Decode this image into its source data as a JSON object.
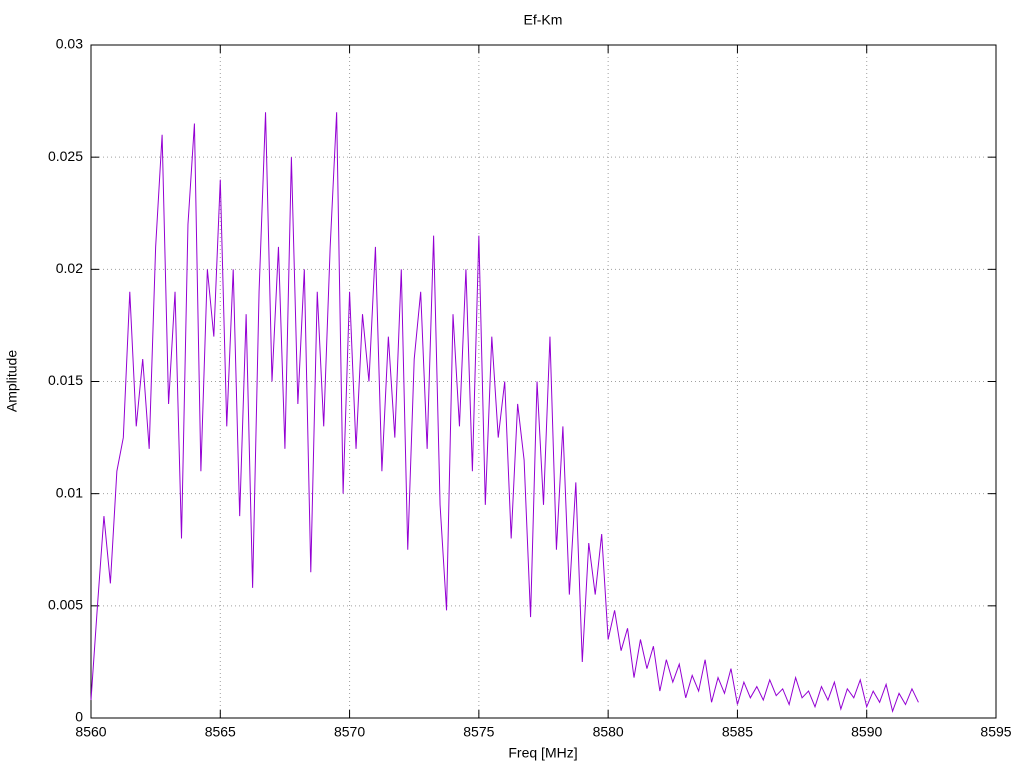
{
  "chart_data": {
    "type": "line",
    "title": "Ef-Km",
    "x_label": "Freq [MHz]",
    "y_label": "Amplitude",
    "color": "#9400d3",
    "grid": true,
    "xlim": [
      8560,
      8595
    ],
    "xticks": [
      8560,
      8565,
      8570,
      8575,
      8580,
      8585,
      8590,
      8595
    ],
    "ylim": [
      0,
      0.03
    ],
    "yticks": [
      0,
      0.005,
      0.01,
      0.015,
      0.02,
      0.025,
      0.03
    ],
    "x": [
      8560,
      8560.25,
      8560.5,
      8560.75,
      8561,
      8561.25,
      8561.5,
      8561.75,
      8562,
      8562.25,
      8562.5,
      8562.75,
      8563,
      8563.25,
      8563.5,
      8563.75,
      8564,
      8564.25,
      8564.5,
      8564.75,
      8565,
      8565.25,
      8565.5,
      8565.75,
      8566,
      8566.25,
      8566.5,
      8566.75,
      8567,
      8567.25,
      8567.5,
      8567.75,
      8568,
      8568.25,
      8568.5,
      8568.75,
      8569,
      8569.25,
      8569.5,
      8569.75,
      8570,
      8570.25,
      8570.5,
      8570.75,
      8571,
      8571.25,
      8571.5,
      8571.75,
      8572,
      8572.25,
      8572.5,
      8572.75,
      8573,
      8573.25,
      8573.5,
      8573.75,
      8574,
      8574.25,
      8574.5,
      8574.75,
      8575,
      8575.25,
      8575.5,
      8575.75,
      8576,
      8576.25,
      8576.5,
      8576.75,
      8577,
      8577.25,
      8577.5,
      8577.75,
      8578,
      8578.25,
      8578.5,
      8578.75,
      8579,
      8579.25,
      8579.5,
      8579.75,
      8580,
      8580.25,
      8580.5,
      8580.75,
      8581,
      8581.25,
      8581.5,
      8581.75,
      8582,
      8582.25,
      8582.5,
      8582.75,
      8583,
      8583.25,
      8583.5,
      8583.75,
      8584,
      8584.25,
      8584.5,
      8584.75,
      8585,
      8585.25,
      8585.5,
      8585.75,
      8586,
      8586.25,
      8586.5,
      8586.75,
      8587,
      8587.25,
      8587.5,
      8587.75,
      8588,
      8588.25,
      8588.5,
      8588.75,
      8589,
      8589.25,
      8589.5,
      8589.75,
      8590,
      8590.25,
      8590.5,
      8590.75,
      8591,
      8591.25,
      8591.5,
      8591.75,
      8592
    ],
    "values": [
      0.0008,
      0.005,
      0.009,
      0.006,
      0.011,
      0.0125,
      0.019,
      0.013,
      0.016,
      0.012,
      0.021,
      0.026,
      0.014,
      0.019,
      0.008,
      0.022,
      0.0265,
      0.011,
      0.02,
      0.017,
      0.024,
      0.013,
      0.02,
      0.009,
      0.018,
      0.0058,
      0.019,
      0.027,
      0.015,
      0.021,
      0.012,
      0.025,
      0.014,
      0.02,
      0.0065,
      0.019,
      0.013,
      0.021,
      0.027,
      0.01,
      0.019,
      0.012,
      0.018,
      0.015,
      0.021,
      0.011,
      0.017,
      0.0125,
      0.02,
      0.0075,
      0.016,
      0.019,
      0.012,
      0.0215,
      0.0095,
      0.0048,
      0.018,
      0.013,
      0.02,
      0.011,
      0.0215,
      0.0095,
      0.017,
      0.0125,
      0.015,
      0.008,
      0.014,
      0.0115,
      0.0045,
      0.015,
      0.0095,
      0.017,
      0.0075,
      0.013,
      0.0055,
      0.0105,
      0.0025,
      0.0078,
      0.0055,
      0.0082,
      0.0035,
      0.0048,
      0.003,
      0.004,
      0.0018,
      0.0035,
      0.0022,
      0.0032,
      0.0012,
      0.0026,
      0.0016,
      0.0024,
      0.0009,
      0.0019,
      0.0012,
      0.0026,
      0.0007,
      0.0018,
      0.0011,
      0.0022,
      0.0006,
      0.0016,
      0.0009,
      0.0014,
      0.0008,
      0.0017,
      0.001,
      0.0013,
      0.0006,
      0.0018,
      0.0009,
      0.0012,
      0.0005,
      0.0014,
      0.0008,
      0.0016,
      0.0004,
      0.0013,
      0.0009,
      0.0017,
      0.0005,
      0.0012,
      0.0007,
      0.0015,
      0.0003,
      0.0011,
      0.0006,
      0.0013,
      0.0007
    ]
  }
}
